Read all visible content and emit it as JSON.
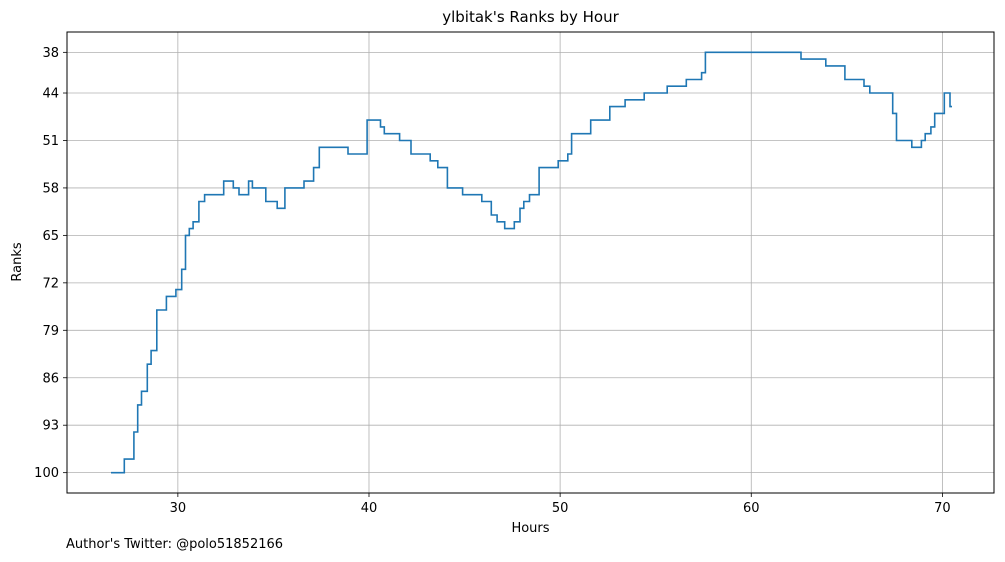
{
  "chart_data": {
    "type": "line",
    "step": true,
    "title": "ylbitak's Ranks by Hour",
    "xlabel": "Hours",
    "ylabel": "Ranks",
    "xlim": [
      24.2,
      72.7
    ],
    "ylim": [
      103,
      35
    ],
    "y_inverted": true,
    "grid": true,
    "color": "#1f77b4",
    "xticks": [
      30,
      40,
      50,
      60,
      70
    ],
    "yticks": [
      38,
      44,
      51,
      58,
      65,
      72,
      79,
      86,
      93,
      100
    ],
    "x": [
      26.5,
      27.2,
      27.7,
      27.9,
      28.1,
      28.4,
      28.6,
      28.9,
      29.4,
      29.9,
      30.2,
      30.4,
      30.6,
      30.8,
      31.1,
      31.4,
      32.4,
      32.9,
      33.2,
      33.7,
      33.9,
      34.6,
      35.2,
      35.6,
      36.6,
      37.1,
      37.4,
      38.4,
      38.9,
      39.9,
      40.6,
      40.8,
      41.6,
      42.2,
      43.2,
      43.6,
      44.1,
      44.9,
      45.9,
      46.4,
      46.7,
      47.1,
      47.6,
      47.9,
      48.1,
      48.4,
      48.9,
      49.9,
      50.4,
      50.6,
      51.1,
      51.6,
      52.6,
      53.4,
      54.4,
      55.6,
      56.6,
      57.4,
      57.6,
      61.9,
      62.6,
      63.9,
      64.9,
      65.9,
      66.2,
      67.4,
      67.6,
      68.4,
      68.9,
      69.1,
      69.4,
      69.6,
      70.1,
      70.4,
      70.5
    ],
    "y": [
      100,
      98,
      94,
      90,
      88,
      84,
      82,
      76,
      74,
      73,
      70,
      65,
      64,
      63,
      60,
      59,
      57,
      58,
      59,
      57,
      58,
      60,
      61,
      58,
      57,
      55,
      52,
      52,
      53,
      48,
      49,
      50,
      51,
      53,
      54,
      55,
      58,
      59,
      60,
      62,
      63,
      64,
      63,
      61,
      60,
      59,
      55,
      54,
      53,
      50,
      50,
      48,
      46,
      45,
      44,
      43,
      42,
      41,
      38,
      38,
      39,
      40,
      42,
      43,
      44,
      47,
      51,
      52,
      51,
      50,
      49,
      47,
      44,
      46,
      46
    ]
  },
  "footer": {
    "text": "Author's Twitter: @polo51852166"
  }
}
